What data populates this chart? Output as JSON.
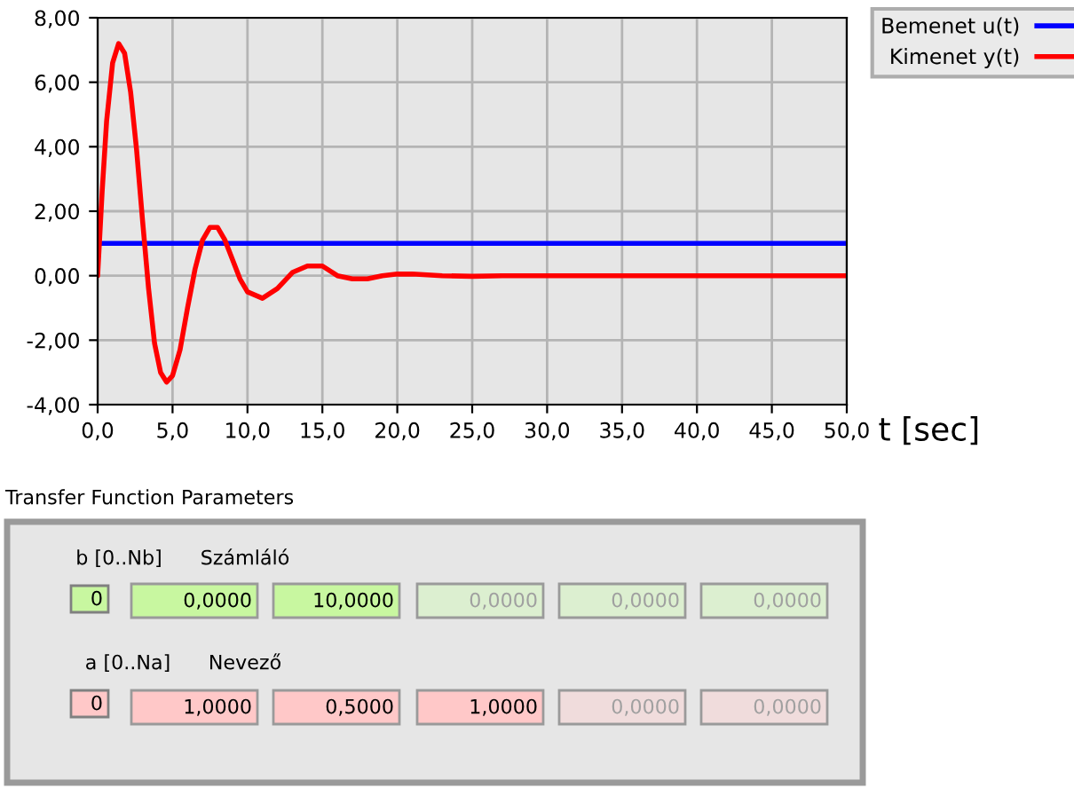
{
  "chart_data": [
    {
      "type": "line",
      "xlabel": "t [sec]",
      "xlim": [
        0,
        50
      ],
      "xticks": [
        {
          "value": 0,
          "label": "0,0"
        },
        {
          "value": 5,
          "label": "5,0"
        },
        {
          "value": 10,
          "label": "10,0"
        },
        {
          "value": 15,
          "label": "15,0"
        },
        {
          "value": 20,
          "label": "20,0"
        },
        {
          "value": 25,
          "label": "25,0"
        },
        {
          "value": 30,
          "label": "30,0"
        },
        {
          "value": 35,
          "label": "35,0"
        },
        {
          "value": 40,
          "label": "40,0"
        },
        {
          "value": 45,
          "label": "45,0"
        },
        {
          "value": 50,
          "label": "50,0"
        }
      ],
      "ylim": [
        -4,
        8
      ],
      "yticks": [
        {
          "value": -4,
          "label": "-4,00"
        },
        {
          "value": -2,
          "label": "-2,00"
        },
        {
          "value": 0,
          "label": "0,00"
        },
        {
          "value": 2,
          "label": "2,00"
        },
        {
          "value": 4,
          "label": "4,00"
        },
        {
          "value": 6,
          "label": "6,00"
        },
        {
          "value": 8,
          "label": "8,00"
        }
      ],
      "grid": true,
      "legend": "top right",
      "series": [
        {
          "name": "Bemenet u(t)",
          "color": "#0000ff",
          "x": [
            0,
            50
          ],
          "values": [
            1,
            1
          ]
        },
        {
          "name": "Kimenet y(t)",
          "color": "#ff0000",
          "x": [
            0,
            0.3,
            0.6,
            1.0,
            1.4,
            1.8,
            2.2,
            2.6,
            3.0,
            3.4,
            3.8,
            4.2,
            4.6,
            5.0,
            5.5,
            6.0,
            6.5,
            7.0,
            7.5,
            8.0,
            8.5,
            9.0,
            9.5,
            10.0,
            11.0,
            12.0,
            13.0,
            14.0,
            15.0,
            16.0,
            17.0,
            18.0,
            19.0,
            20.0,
            21.0,
            23.0,
            25.0,
            27.0,
            30.0,
            50.0
          ],
          "values": [
            0,
            2.6,
            4.8,
            6.6,
            7.2,
            6.9,
            5.7,
            3.9,
            1.7,
            -0.4,
            -2.1,
            -3.0,
            -3.3,
            -3.1,
            -2.3,
            -1.0,
            0.2,
            1.1,
            1.5,
            1.5,
            1.1,
            0.5,
            -0.1,
            -0.5,
            -0.7,
            -0.4,
            0.1,
            0.3,
            0.3,
            0.0,
            -0.1,
            -0.1,
            0.0,
            0.05,
            0.05,
            0.0,
            -0.02,
            0.0,
            0.0,
            0.0
          ]
        }
      ]
    },
    {
      "type": "other",
      "title": "Transfer Function Parameters",
      "annotations": [
        "b [0..Nb]",
        "Számláló",
        "0",
        "0,0000",
        "10,0000",
        "0,0000",
        "0,0000",
        "0,0000",
        "a [0..Na]",
        "Nevező",
        "0",
        "1,0000",
        "0,5000",
        "1,0000",
        "0,0000",
        "0,0000"
      ]
    }
  ]
}
